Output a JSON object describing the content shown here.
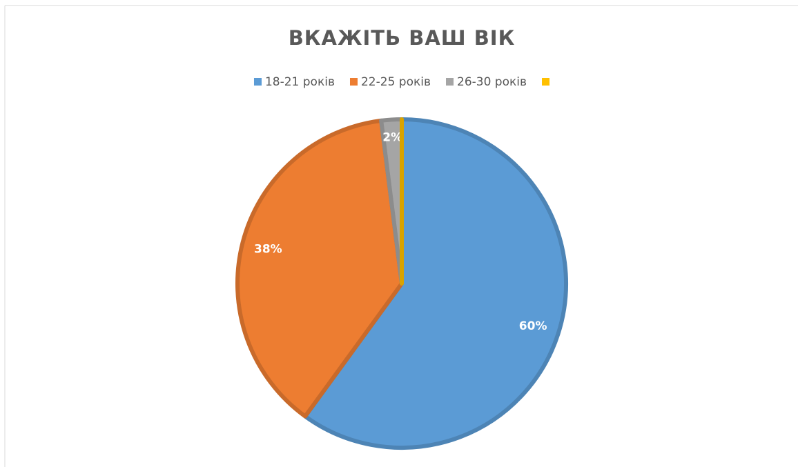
{
  "chart_data": {
    "type": "pie",
    "title": "ВКАЖІТЬ ВАШ ВІК",
    "categories": [
      "18-21 років",
      "22-25 років",
      "26-30 років",
      null
    ],
    "values": [
      60,
      38,
      2,
      0
    ],
    "value_labels": [
      "60%",
      "38%",
      "2%",
      null
    ],
    "colors": [
      "#5b9bd5",
      "#ed7d31",
      "#a5a5a5",
      "#ffc000"
    ],
    "legend": "top"
  }
}
